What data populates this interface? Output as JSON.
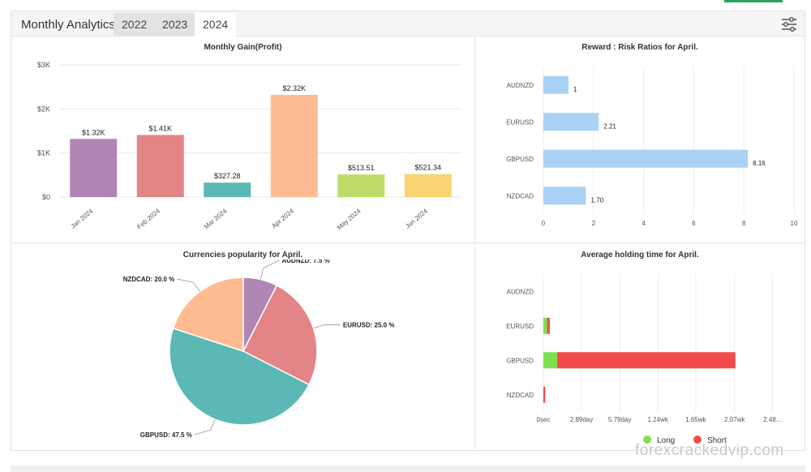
{
  "header": {
    "title": "Monthly Analytics",
    "tabs": [
      {
        "label": "2022",
        "active": false
      },
      {
        "label": "2023",
        "active": false
      },
      {
        "label": "2024",
        "active": true
      }
    ],
    "filter_icon": "sliders-icon"
  },
  "chart_data": [
    {
      "type": "bar",
      "title": "Monthly Gain(Profit)",
      "categories": [
        "Jan 2024",
        "Feb 2024",
        "Mar 2024",
        "Apr 2024",
        "May 2024",
        "Jun 2024"
      ],
      "values": [
        1320,
        1410,
        327.28,
        2320,
        513.51,
        521.34
      ],
      "labels": [
        "$1.32K",
        "$1.41K",
        "$327.28",
        "$2.32K",
        "$513.51",
        "$521.34"
      ],
      "colors": [
        "#b186b4",
        "#e38586",
        "#5bb8b4",
        "#ffbb92",
        "#c1db6a",
        "#f8d472"
      ],
      "yticks": [
        0,
        1000,
        2000,
        3000
      ],
      "ytick_labels": [
        "$0",
        "$1K",
        "$2K",
        "$3K"
      ],
      "ylim": [
        0,
        3000
      ],
      "grid": true
    },
    {
      "type": "bar",
      "orientation": "horizontal",
      "title": "Reward : Risk Ratios for April.",
      "categories": [
        "AUDNZD",
        "EURUSD",
        "GBPUSD",
        "NZDCAD"
      ],
      "values": [
        1,
        2.21,
        8.16,
        1.7
      ],
      "labels": [
        "1",
        "2.21",
        "8.16",
        "1.70"
      ],
      "color": "#a9d2f5",
      "xticks": [
        0,
        2,
        4,
        6,
        8,
        10
      ],
      "xlim": [
        0,
        10
      ],
      "grid": true
    },
    {
      "type": "pie",
      "title": "Currencies popularity for April.",
      "categories": [
        "AUDNZD",
        "EURUSD",
        "GBPUSD",
        "NZDCAD"
      ],
      "values": [
        7.5,
        25.0,
        47.5,
        20.0
      ],
      "labels": [
        "AUDNZD: 7.5 %",
        "EURUSD: 25.0 %",
        "GBPUSD: 47.5 %",
        "NZDCAD: 20.0 %"
      ],
      "colors": [
        "#b186b4",
        "#e38586",
        "#5bb8b4",
        "#ffbb92"
      ]
    },
    {
      "type": "bar",
      "orientation": "horizontal",
      "stacked": true,
      "title": "Average holding time for April.",
      "categories": [
        "AUDNZD",
        "EURUSD",
        "GBPUSD",
        "NZDCAD"
      ],
      "series": [
        {
          "name": "Long",
          "color": "#7de04f",
          "values": [
            0,
            0.04,
            0.15,
            0
          ]
        },
        {
          "name": "Short",
          "color": "#f24b4b",
          "values": [
            0,
            0.03,
            1.93,
            0.02
          ]
        }
      ],
      "value_unit": "wk",
      "xtick_labels": [
        "0sec",
        "2.89day",
        "5.79day",
        "1.24wk",
        "1.65wk",
        "2.07wk",
        "2.48..."
      ],
      "xticks": [
        0,
        0.413,
        0.827,
        1.24,
        1.65,
        2.07,
        2.48
      ],
      "xlim": [
        0,
        2.6
      ],
      "legend": {
        "position": "bottom",
        "items": [
          "Long",
          "Short"
        ]
      }
    }
  ],
  "watermark": "forexcrackedvip.com"
}
